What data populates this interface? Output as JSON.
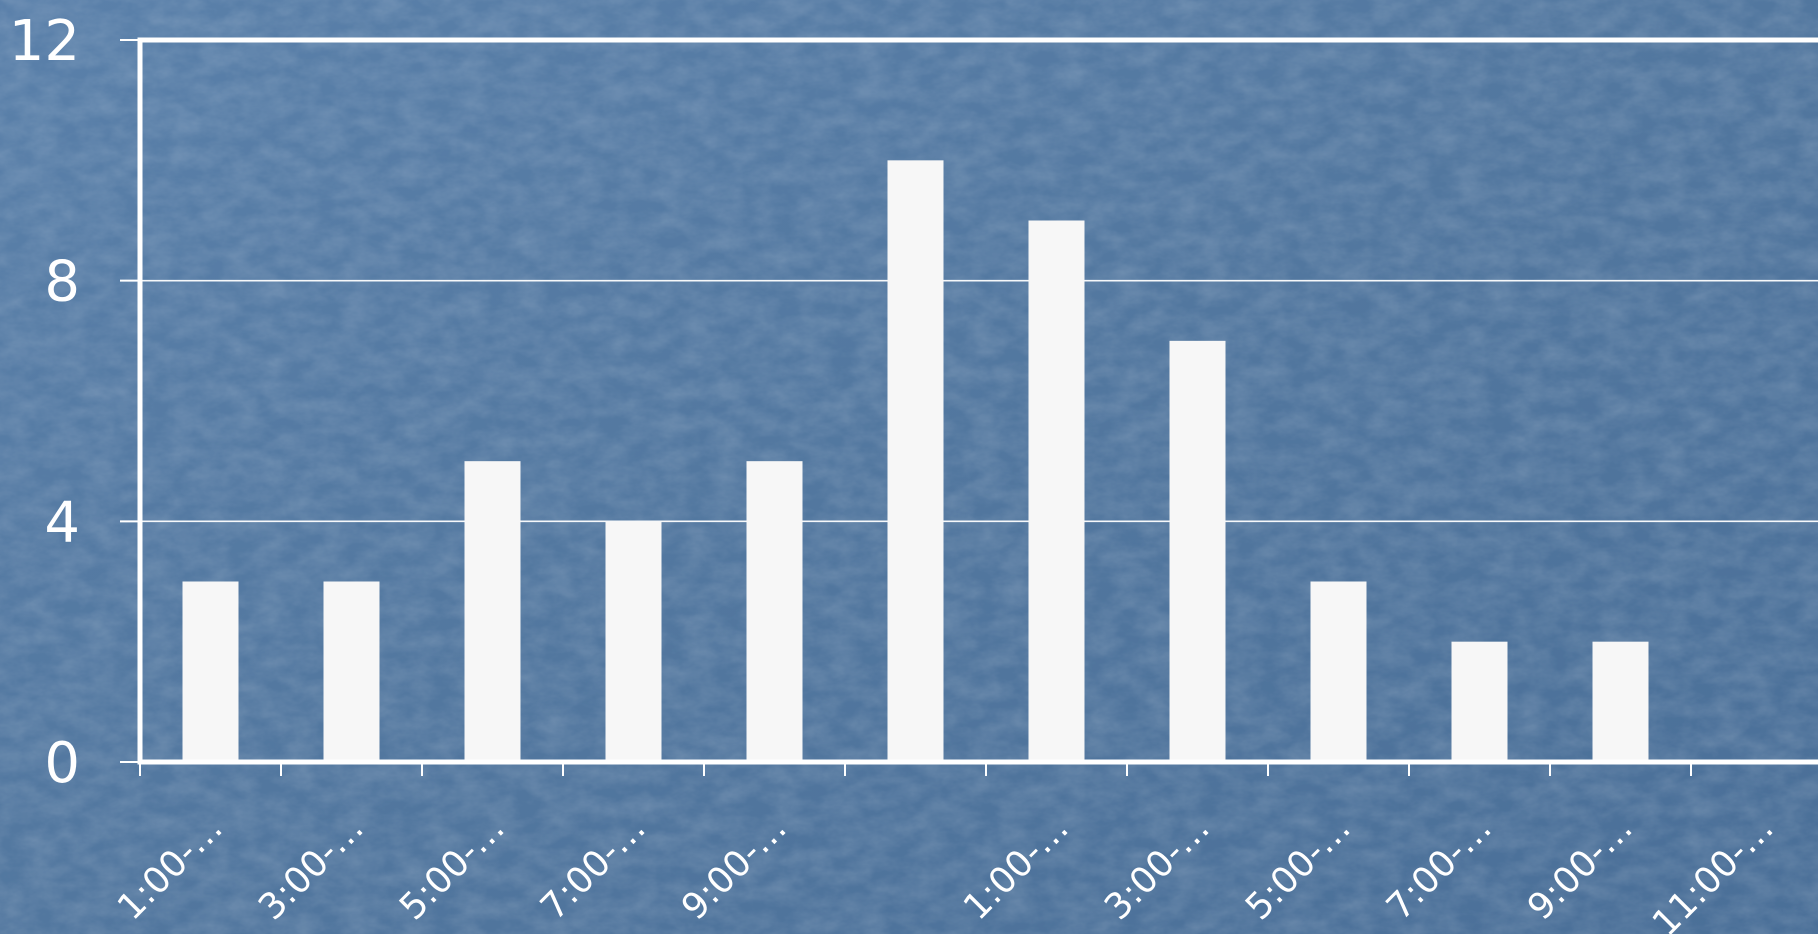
{
  "colors": {
    "background": "#5277a0",
    "bar": "#f7f7f7",
    "axis": "#ffffff",
    "gridline": "#ffffff"
  },
  "chart_data": {
    "type": "bar",
    "categories": [
      "1:00-…",
      "3:00-…",
      "5:00-…",
      "7:00-…",
      "9:00-…",
      "",
      "1:00-…",
      "3:00-…",
      "5:00-…",
      "7:00-…",
      "9:00-…",
      "11:00-…"
    ],
    "values": [
      3,
      3,
      5,
      4,
      5,
      10,
      9,
      7,
      3,
      2,
      2,
      0
    ],
    "yticks": [
      0,
      4,
      8,
      12
    ],
    "ylim": [
      0,
      12
    ],
    "grid": true
  }
}
